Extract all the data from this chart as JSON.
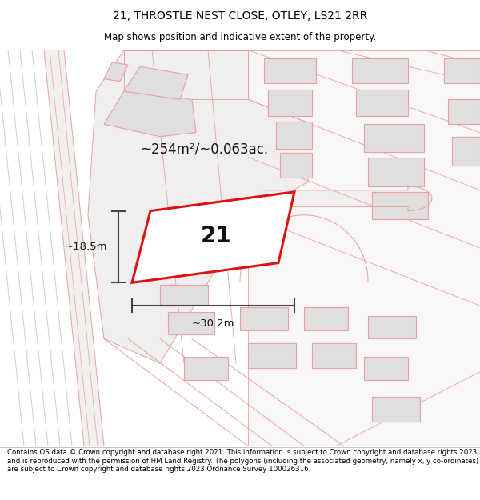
{
  "title": "21, THROSTLE NEST CLOSE, OTLEY, LS21 2RR",
  "subtitle": "Map shows position and indicative extent of the property.",
  "footer": "Contains OS data © Crown copyright and database right 2021. This information is subject to Crown copyright and database rights 2023 and is reproduced with the permission of HM Land Registry. The polygons (including the associated geometry, namely x, y co-ordinates) are subject to Crown copyright and database rights 2023 Ordnance Survey 100026316.",
  "area_label": "~254m²/~0.063ac.",
  "number_label": "21",
  "dim_height": "~18.5m",
  "dim_width": "~30.2m",
  "map_bg": "#f9f8f8",
  "building_fill": "#e0dede",
  "parcel_fill": "#f0eeee",
  "road_fill": "#f5f3f3",
  "lc": "#e8a0a0",
  "highlight_red": "#dd1111",
  "title_fontsize": 10,
  "subtitle_fontsize": 8.5,
  "footer_fontsize": 6.2
}
